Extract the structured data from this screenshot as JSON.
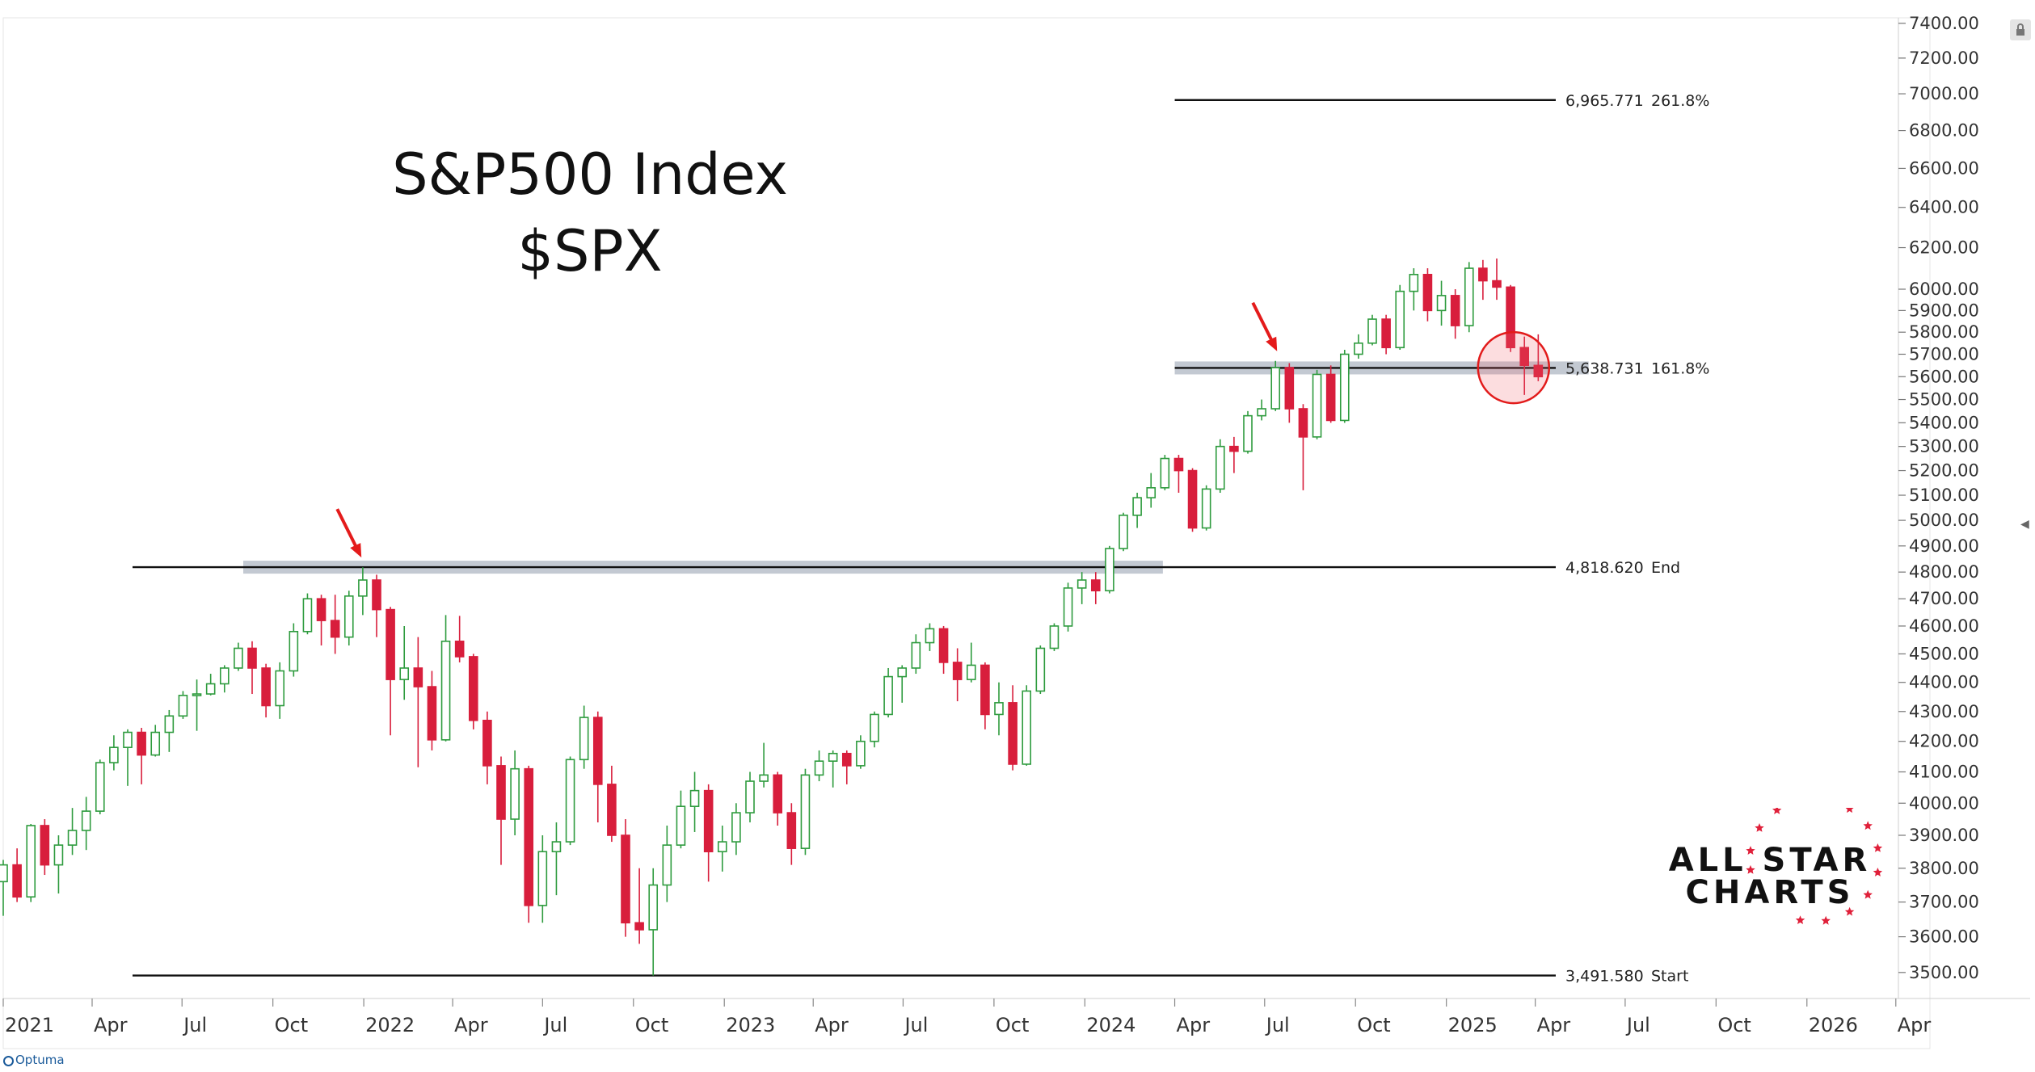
{
  "title_lines": [
    "S&P500 Index",
    "$SPX"
  ],
  "logo": {
    "line1": "ALL STAR",
    "line2": "CHARTS"
  },
  "footer": {
    "brand": "Optuma"
  },
  "chart_data": {
    "type": "candlestick",
    "title": "S&P500 Index $SPX",
    "xlabel": "",
    "ylabel": "",
    "ylim": [
      3400,
      7400
    ],
    "y_scale": "log",
    "y_ticks": [
      "7400.00",
      "7200.00",
      "7000.00",
      "6800.00",
      "6600.00",
      "6400.00",
      "6200.00",
      "6000.00",
      "5900.00",
      "5800.00",
      "5700.00",
      "5600.00",
      "5500.00",
      "5400.00",
      "5300.00",
      "5200.00",
      "5100.00",
      "5000.00",
      "4900.00",
      "4800.00",
      "4700.00",
      "4600.00",
      "4500.00",
      "4400.00",
      "4300.00",
      "4200.00",
      "4100.00",
      "4000.00",
      "3900.00",
      "3800.00",
      "3700.00",
      "3600.00",
      "3500.00"
    ],
    "x_ticks": [
      {
        "label": "2021",
        "date": "2021-01-01"
      },
      {
        "label": "Apr",
        "date": "2021-04-01"
      },
      {
        "label": "Jul",
        "date": "2021-07-01"
      },
      {
        "label": "Oct",
        "date": "2021-10-01"
      },
      {
        "label": "2022",
        "date": "2022-01-01"
      },
      {
        "label": "Apr",
        "date": "2022-04-01"
      },
      {
        "label": "Jul",
        "date": "2022-07-01"
      },
      {
        "label": "Oct",
        "date": "2022-10-01"
      },
      {
        "label": "2023",
        "date": "2023-01-01"
      },
      {
        "label": "Apr",
        "date": "2023-04-01"
      },
      {
        "label": "Jul",
        "date": "2023-07-01"
      },
      {
        "label": "Oct",
        "date": "2023-10-01"
      },
      {
        "label": "2024",
        "date": "2024-01-01"
      },
      {
        "label": "Apr",
        "date": "2024-04-01"
      },
      {
        "label": "Jul",
        "date": "2024-07-01"
      },
      {
        "label": "Oct",
        "date": "2024-10-01"
      },
      {
        "label": "2025",
        "date": "2025-01-01"
      },
      {
        "label": "Apr",
        "date": "2025-04-01"
      },
      {
        "label": "Jul",
        "date": "2025-07-01"
      },
      {
        "label": "Oct",
        "date": "2025-10-01"
      },
      {
        "label": "2026",
        "date": "2026-01-01"
      },
      {
        "label": "Apr",
        "date": "2026-04-01"
      }
    ],
    "fib_levels": [
      {
        "value": 6965.771,
        "value_label": "6,965.771",
        "label": "261.8%",
        "start": "2024-04-01"
      },
      {
        "value": 5638.731,
        "value_label": "5,638.731",
        "label": "161.8%",
        "start": "2024-04-01"
      },
      {
        "value": 4818.62,
        "value_label": "4,818.620",
        "label": "End",
        "start": "2021-01-01"
      },
      {
        "value": 3491.58,
        "value_label": "3,491.580",
        "label": "Start",
        "start": "2021-01-01"
      }
    ],
    "zones": [
      {
        "start": "2021-09-01",
        "end": "2024-03-20",
        "center": 4818.62
      },
      {
        "start": "2024-04-01",
        "end": "2025-05-25",
        "center": 5638.731
      }
    ],
    "arrows": [
      {
        "date": "2021-12-28",
        "value": 4818.62
      },
      {
        "date": "2024-07-12",
        "value": 5670
      }
    ],
    "circle": {
      "date": "2025-03-10",
      "value": 5640
    },
    "series": [
      {
        "d": "2021-01-01",
        "o": 3760,
        "h": 3825,
        "l": 3660,
        "c": 3810
      },
      {
        "d": "2021-01-15",
        "o": 3810,
        "h": 3860,
        "l": 3700,
        "c": 3715
      },
      {
        "d": "2021-01-29",
        "o": 3715,
        "h": 3935,
        "l": 3700,
        "c": 3930
      },
      {
        "d": "2021-02-12",
        "o": 3930,
        "h": 3950,
        "l": 3780,
        "c": 3810
      },
      {
        "d": "2021-02-26",
        "o": 3810,
        "h": 3900,
        "l": 3725,
        "c": 3870
      },
      {
        "d": "2021-03-12",
        "o": 3870,
        "h": 3985,
        "l": 3840,
        "c": 3915
      },
      {
        "d": "2021-03-26",
        "o": 3915,
        "h": 4020,
        "l": 3855,
        "c": 3975
      },
      {
        "d": "2021-04-09",
        "o": 3975,
        "h": 4140,
        "l": 3965,
        "c": 4130
      },
      {
        "d": "2021-04-23",
        "o": 4130,
        "h": 4220,
        "l": 4105,
        "c": 4180
      },
      {
        "d": "2021-05-07",
        "o": 4180,
        "h": 4240,
        "l": 4055,
        "c": 4230
      },
      {
        "d": "2021-05-21",
        "o": 4230,
        "h": 4245,
        "l": 4060,
        "c": 4155
      },
      {
        "d": "2021-06-04",
        "o": 4155,
        "h": 4255,
        "l": 4150,
        "c": 4230
      },
      {
        "d": "2021-06-18",
        "o": 4230,
        "h": 4305,
        "l": 4165,
        "c": 4285
      },
      {
        "d": "2021-07-02",
        "o": 4285,
        "h": 4370,
        "l": 4275,
        "c": 4355
      },
      {
        "d": "2021-07-16",
        "o": 4355,
        "h": 4410,
        "l": 4235,
        "c": 4360
      },
      {
        "d": "2021-07-30",
        "o": 4360,
        "h": 4430,
        "l": 4355,
        "c": 4395
      },
      {
        "d": "2021-08-13",
        "o": 4395,
        "h": 4460,
        "l": 4365,
        "c": 4450
      },
      {
        "d": "2021-08-27",
        "o": 4450,
        "h": 4540,
        "l": 4440,
        "c": 4520
      },
      {
        "d": "2021-09-10",
        "o": 4520,
        "h": 4545,
        "l": 4360,
        "c": 4450
      },
      {
        "d": "2021-09-24",
        "o": 4450,
        "h": 4465,
        "l": 4280,
        "c": 4320
      },
      {
        "d": "2021-10-08",
        "o": 4320,
        "h": 4470,
        "l": 4275,
        "c": 4440
      },
      {
        "d": "2021-10-22",
        "o": 4440,
        "h": 4610,
        "l": 4420,
        "c": 4580
      },
      {
        "d": "2021-11-05",
        "o": 4580,
        "h": 4720,
        "l": 4570,
        "c": 4700
      },
      {
        "d": "2021-11-19",
        "o": 4700,
        "h": 4715,
        "l": 4530,
        "c": 4620
      },
      {
        "d": "2021-12-03",
        "o": 4620,
        "h": 4715,
        "l": 4500,
        "c": 4560
      },
      {
        "d": "2021-12-17",
        "o": 4560,
        "h": 4730,
        "l": 4530,
        "c": 4710
      },
      {
        "d": "2021-12-31",
        "o": 4710,
        "h": 4818,
        "l": 4640,
        "c": 4770
      },
      {
        "d": "2022-01-14",
        "o": 4770,
        "h": 4790,
        "l": 4560,
        "c": 4660
      },
      {
        "d": "2022-01-28",
        "o": 4660,
        "h": 4670,
        "l": 4220,
        "c": 4410
      },
      {
        "d": "2022-02-11",
        "o": 4410,
        "h": 4600,
        "l": 4340,
        "c": 4450
      },
      {
        "d": "2022-02-25",
        "o": 4450,
        "h": 4560,
        "l": 4115,
        "c": 4385
      },
      {
        "d": "2022-03-11",
        "o": 4385,
        "h": 4440,
        "l": 4170,
        "c": 4205
      },
      {
        "d": "2022-03-25",
        "o": 4205,
        "h": 4640,
        "l": 4200,
        "c": 4545
      },
      {
        "d": "2022-04-08",
        "o": 4545,
        "h": 4637,
        "l": 4470,
        "c": 4490
      },
      {
        "d": "2022-04-22",
        "o": 4490,
        "h": 4500,
        "l": 4240,
        "c": 4270
      },
      {
        "d": "2022-05-06",
        "o": 4270,
        "h": 4300,
        "l": 4060,
        "c": 4120
      },
      {
        "d": "2022-05-20",
        "o": 4120,
        "h": 4150,
        "l": 3810,
        "c": 3950
      },
      {
        "d": "2022-06-03",
        "o": 3950,
        "h": 4170,
        "l": 3900,
        "c": 4110
      },
      {
        "d": "2022-06-17",
        "o": 4110,
        "h": 4120,
        "l": 3640,
        "c": 3690
      },
      {
        "d": "2022-07-01",
        "o": 3690,
        "h": 3900,
        "l": 3640,
        "c": 3850
      },
      {
        "d": "2022-07-15",
        "o": 3850,
        "h": 3940,
        "l": 3720,
        "c": 3880
      },
      {
        "d": "2022-07-29",
        "o": 3880,
        "h": 4150,
        "l": 3870,
        "c": 4140
      },
      {
        "d": "2022-08-12",
        "o": 4140,
        "h": 4320,
        "l": 4110,
        "c": 4280
      },
      {
        "d": "2022-08-26",
        "o": 4280,
        "h": 4300,
        "l": 3940,
        "c": 4060
      },
      {
        "d": "2022-09-09",
        "o": 4060,
        "h": 4120,
        "l": 3880,
        "c": 3900
      },
      {
        "d": "2022-09-23",
        "o": 3900,
        "h": 3950,
        "l": 3600,
        "c": 3640
      },
      {
        "d": "2022-10-07",
        "o": 3640,
        "h": 3800,
        "l": 3580,
        "c": 3620
      },
      {
        "d": "2022-10-21",
        "o": 3620,
        "h": 3800,
        "l": 3491.58,
        "c": 3750
      },
      {
        "d": "2022-11-04",
        "o": 3750,
        "h": 3930,
        "l": 3700,
        "c": 3870
      },
      {
        "d": "2022-11-18",
        "o": 3870,
        "h": 4040,
        "l": 3860,
        "c": 3990
      },
      {
        "d": "2022-12-02",
        "o": 3990,
        "h": 4100,
        "l": 3910,
        "c": 4040
      },
      {
        "d": "2022-12-16",
        "o": 4040,
        "h": 4060,
        "l": 3760,
        "c": 3850
      },
      {
        "d": "2022-12-30",
        "o": 3850,
        "h": 3930,
        "l": 3790,
        "c": 3880
      },
      {
        "d": "2023-01-13",
        "o": 3880,
        "h": 4000,
        "l": 3840,
        "c": 3970
      },
      {
        "d": "2023-01-27",
        "o": 3970,
        "h": 4100,
        "l": 3940,
        "c": 4070
      },
      {
        "d": "2023-02-10",
        "o": 4070,
        "h": 4195,
        "l": 4050,
        "c": 4090
      },
      {
        "d": "2023-02-24",
        "o": 4090,
        "h": 4100,
        "l": 3930,
        "c": 3970
      },
      {
        "d": "2023-03-10",
        "o": 3970,
        "h": 4000,
        "l": 3810,
        "c": 3860
      },
      {
        "d": "2023-03-24",
        "o": 3860,
        "h": 4110,
        "l": 3840,
        "c": 4090
      },
      {
        "d": "2023-04-07",
        "o": 4090,
        "h": 4170,
        "l": 4070,
        "c": 4135
      },
      {
        "d": "2023-04-21",
        "o": 4135,
        "h": 4170,
        "l": 4050,
        "c": 4160
      },
      {
        "d": "2023-05-05",
        "o": 4160,
        "h": 4170,
        "l": 4060,
        "c": 4120
      },
      {
        "d": "2023-05-19",
        "o": 4120,
        "h": 4220,
        "l": 4110,
        "c": 4200
      },
      {
        "d": "2023-06-02",
        "o": 4200,
        "h": 4300,
        "l": 4180,
        "c": 4290
      },
      {
        "d": "2023-06-16",
        "o": 4290,
        "h": 4450,
        "l": 4280,
        "c": 4420
      },
      {
        "d": "2023-06-30",
        "o": 4420,
        "h": 4460,
        "l": 4330,
        "c": 4450
      },
      {
        "d": "2023-07-14",
        "o": 4450,
        "h": 4570,
        "l": 4430,
        "c": 4540
      },
      {
        "d": "2023-07-28",
        "o": 4540,
        "h": 4610,
        "l": 4510,
        "c": 4590
      },
      {
        "d": "2023-08-11",
        "o": 4590,
        "h": 4600,
        "l": 4430,
        "c": 4470
      },
      {
        "d": "2023-08-25",
        "o": 4470,
        "h": 4520,
        "l": 4335,
        "c": 4410
      },
      {
        "d": "2023-09-08",
        "o": 4410,
        "h": 4540,
        "l": 4400,
        "c": 4460
      },
      {
        "d": "2023-09-22",
        "o": 4460,
        "h": 4470,
        "l": 4240,
        "c": 4290
      },
      {
        "d": "2023-10-06",
        "o": 4290,
        "h": 4400,
        "l": 4220,
        "c": 4330
      },
      {
        "d": "2023-10-20",
        "o": 4330,
        "h": 4390,
        "l": 4105,
        "c": 4125
      },
      {
        "d": "2023-11-03",
        "o": 4125,
        "h": 4390,
        "l": 4120,
        "c": 4370
      },
      {
        "d": "2023-11-17",
        "o": 4370,
        "h": 4530,
        "l": 4360,
        "c": 4520
      },
      {
        "d": "2023-12-01",
        "o": 4520,
        "h": 4610,
        "l": 4510,
        "c": 4600
      },
      {
        "d": "2023-12-15",
        "o": 4600,
        "h": 4760,
        "l": 4580,
        "c": 4740
      },
      {
        "d": "2023-12-29",
        "o": 4740,
        "h": 4800,
        "l": 4680,
        "c": 4770
      },
      {
        "d": "2024-01-12",
        "o": 4770,
        "h": 4800,
        "l": 4680,
        "c": 4730
      },
      {
        "d": "2024-01-26",
        "o": 4730,
        "h": 4900,
        "l": 4720,
        "c": 4890
      },
      {
        "d": "2024-02-09",
        "o": 4890,
        "h": 5030,
        "l": 4880,
        "c": 5020
      },
      {
        "d": "2024-02-23",
        "o": 5020,
        "h": 5110,
        "l": 4970,
        "c": 5090
      },
      {
        "d": "2024-03-08",
        "o": 5090,
        "h": 5190,
        "l": 5050,
        "c": 5130
      },
      {
        "d": "2024-03-22",
        "o": 5130,
        "h": 5265,
        "l": 5120,
        "c": 5250
      },
      {
        "d": "2024-04-05",
        "o": 5250,
        "h": 5265,
        "l": 5110,
        "c": 5200
      },
      {
        "d": "2024-04-19",
        "o": 5200,
        "h": 5210,
        "l": 4955,
        "c": 4970
      },
      {
        "d": "2024-05-03",
        "o": 4970,
        "h": 5140,
        "l": 4960,
        "c": 5125
      },
      {
        "d": "2024-05-17",
        "o": 5125,
        "h": 5330,
        "l": 5110,
        "c": 5300
      },
      {
        "d": "2024-05-31",
        "o": 5300,
        "h": 5340,
        "l": 5190,
        "c": 5280
      },
      {
        "d": "2024-06-14",
        "o": 5280,
        "h": 5450,
        "l": 5270,
        "c": 5430
      },
      {
        "d": "2024-06-28",
        "o": 5430,
        "h": 5500,
        "l": 5410,
        "c": 5460
      },
      {
        "d": "2024-07-12",
        "o": 5460,
        "h": 5670,
        "l": 5450,
        "c": 5640
      },
      {
        "d": "2024-07-26",
        "o": 5640,
        "h": 5660,
        "l": 5400,
        "c": 5460
      },
      {
        "d": "2024-08-09",
        "o": 5460,
        "h": 5480,
        "l": 5120,
        "c": 5340
      },
      {
        "d": "2024-08-23",
        "o": 5340,
        "h": 5630,
        "l": 5330,
        "c": 5610
      },
      {
        "d": "2024-09-06",
        "o": 5610,
        "h": 5650,
        "l": 5400,
        "c": 5410
      },
      {
        "d": "2024-09-20",
        "o": 5410,
        "h": 5720,
        "l": 5400,
        "c": 5700
      },
      {
        "d": "2024-10-04",
        "o": 5700,
        "h": 5790,
        "l": 5680,
        "c": 5750
      },
      {
        "d": "2024-10-18",
        "o": 5750,
        "h": 5880,
        "l": 5740,
        "c": 5860
      },
      {
        "d": "2024-11-01",
        "o": 5860,
        "h": 5880,
        "l": 5700,
        "c": 5730
      },
      {
        "d": "2024-11-15",
        "o": 5730,
        "h": 6020,
        "l": 5720,
        "c": 5990
      },
      {
        "d": "2024-11-29",
        "o": 5990,
        "h": 6100,
        "l": 5900,
        "c": 6070
      },
      {
        "d": "2024-12-13",
        "o": 6070,
        "h": 6100,
        "l": 5850,
        "c": 5900
      },
      {
        "d": "2024-12-27",
        "o": 5900,
        "h": 6040,
        "l": 5830,
        "c": 5970
      },
      {
        "d": "2025-01-10",
        "o": 5970,
        "h": 6000,
        "l": 5770,
        "c": 5830
      },
      {
        "d": "2025-01-24",
        "o": 5830,
        "h": 6130,
        "l": 5800,
        "c": 6100
      },
      {
        "d": "2025-02-07",
        "o": 6100,
        "h": 6140,
        "l": 5950,
        "c": 6040
      },
      {
        "d": "2025-02-21",
        "o": 6040,
        "h": 6147,
        "l": 5950,
        "c": 6010
      },
      {
        "d": "2025-03-07",
        "o": 6010,
        "h": 6020,
        "l": 5710,
        "c": 5730
      },
      {
        "d": "2025-03-21",
        "o": 5730,
        "h": 5780,
        "l": 5520,
        "c": 5650
      },
      {
        "d": "2025-04-04",
        "o": 5650,
        "h": 5790,
        "l": 5580,
        "c": 5600
      }
    ]
  }
}
